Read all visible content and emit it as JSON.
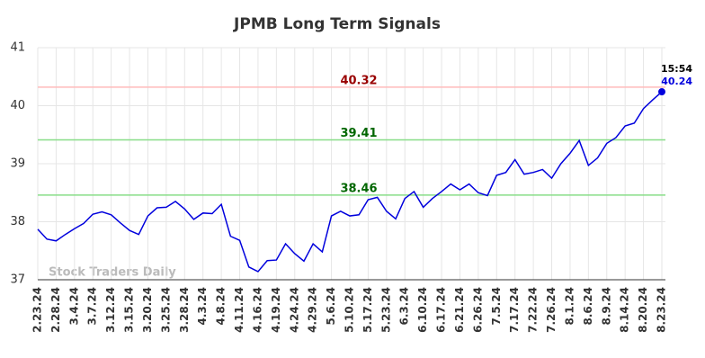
{
  "chart_data": {
    "type": "line",
    "title": "JPMB Long Term Signals",
    "categories": [
      "2.23.24",
      null,
      "2.28.24",
      null,
      "3.4.24",
      null,
      "3.7.24",
      null,
      "3.12.24",
      null,
      "3.15.24",
      null,
      "3.20.24",
      null,
      "3.25.24",
      null,
      "3.28.24",
      null,
      "4.3.24",
      null,
      "4.8.24",
      null,
      "4.11.24",
      null,
      "4.16.24",
      null,
      "4.19.24",
      null,
      "4.24.24",
      null,
      "4.29.24",
      null,
      "5.6.24",
      null,
      "5.10.24",
      null,
      "5.17.24",
      null,
      "5.23.24",
      null,
      "6.3.24",
      null,
      "6.10.24",
      null,
      "6.17.24",
      null,
      "6.21.24",
      null,
      "6.26.24",
      null,
      "7.5.24",
      null,
      "7.17.24",
      null,
      "7.22.24",
      null,
      "7.26.24",
      null,
      "8.1.24",
      null,
      "8.6.24",
      null,
      "8.9.24",
      null,
      "8.14.24",
      null,
      "8.20.24",
      null,
      "8.23.24"
    ],
    "values": [
      37.87,
      37.7,
      37.67,
      37.78,
      37.88,
      37.97,
      38.13,
      38.17,
      38.12,
      37.98,
      37.85,
      37.78,
      38.1,
      38.24,
      38.25,
      38.35,
      38.22,
      38.04,
      38.15,
      38.14,
      38.3,
      37.75,
      37.68,
      37.22,
      37.14,
      37.33,
      37.34,
      37.62,
      37.45,
      37.32,
      37.62,
      37.48,
      38.1,
      38.18,
      38.1,
      38.12,
      38.38,
      38.42,
      38.18,
      38.05,
      38.4,
      38.52,
      38.25,
      38.4,
      38.52,
      38.65,
      38.55,
      38.65,
      38.5,
      38.45,
      38.8,
      38.85,
      39.07,
      38.82,
      38.85,
      38.9,
      38.75,
      39.0,
      39.18,
      39.4,
      38.97,
      39.1,
      39.35,
      39.45,
      39.65,
      39.7,
      39.95,
      40.1,
      40.24
    ],
    "color": "#0000dd",
    "ylim": [
      37,
      41
    ],
    "yticks": [
      37,
      38,
      39,
      40,
      41
    ],
    "grid": true,
    "hlines": [
      {
        "value": 40.32,
        "color": "#ffbbbb",
        "label_color": "#990000"
      },
      {
        "value": 39.41,
        "color": "#88dd88",
        "label_color": "#006600"
      },
      {
        "value": 38.46,
        "color": "#88dd88",
        "label_color": "#006600"
      }
    ],
    "last_time": "15:54",
    "watermark": "Stock Traders Daily"
  }
}
